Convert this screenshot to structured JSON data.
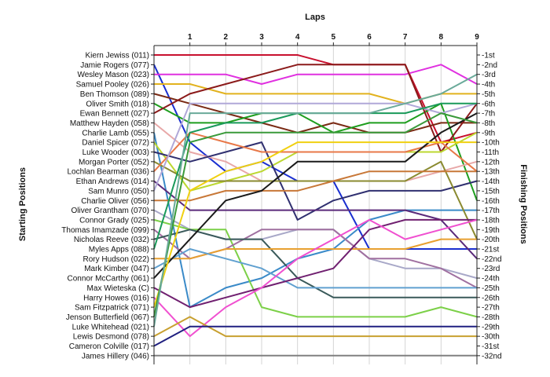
{
  "chart_data": {
    "type": "line",
    "title": "",
    "xlabel": "Laps",
    "ylabel_left": "Starting Positions",
    "ylabel_right": "Finishing Positions",
    "x": [
      0,
      1,
      2,
      3,
      4,
      5,
      6,
      7,
      8,
      9
    ],
    "x_tick_labels": [
      "1",
      "2",
      "3",
      "4",
      "5",
      "6",
      "7",
      "8",
      "9"
    ],
    "ylim": [
      1,
      32
    ],
    "grid": "vertical",
    "legend": "none",
    "drivers": [
      {
        "name": "Kiern Jewiss (011)",
        "color": "#c8102e",
        "positions": [
          1,
          1,
          1,
          1,
          1,
          2,
          2,
          2,
          10,
          9
        ]
      },
      {
        "name": "Jamie Rogers (077)",
        "color": "#1a2fd0",
        "positions": [
          2,
          10,
          13,
          12,
          14,
          14,
          21,
          21,
          21,
          21
        ]
      },
      {
        "name": "Wesley Mason (023)",
        "color": "#e030e0",
        "positions": [
          3,
          3,
          3,
          4,
          3,
          3,
          3,
          3,
          2,
          4
        ]
      },
      {
        "name": "Samuel Pooley (026)",
        "color": "#e2b21e",
        "positions": [
          4,
          4,
          5,
          5,
          5,
          5,
          5,
          6,
          5,
          5
        ]
      },
      {
        "name": "Ben Thomson (089)",
        "color": "#7a2a14",
        "positions": [
          5,
          6,
          7,
          8,
          9,
          8,
          9,
          9,
          8,
          8
        ]
      },
      {
        "name": "Oliver Smith (018)",
        "color": "#1e9e1e",
        "positions": [
          6,
          8,
          8,
          7,
          7,
          9,
          8,
          8,
          6,
          16
        ]
      },
      {
        "name": "Ewan Bennett (027)",
        "color": "#8b1a1a",
        "positions": [
          7,
          5,
          4,
          3,
          2,
          2,
          2,
          2,
          11,
          6
        ]
      },
      {
        "name": "Matthew Hayden (058)",
        "color": "#e8a8a8",
        "positions": [
          8,
          11,
          12,
          14,
          14,
          14,
          14,
          14,
          13,
          12
        ]
      },
      {
        "name": "Charlie Lamb (055)",
        "color": "#3a8ac8",
        "positions": [
          9,
          27,
          25,
          24,
          22,
          21,
          18,
          17,
          17,
          17
        ]
      },
      {
        "name": "Daniel Spicer (072)",
        "color": "#bcd830",
        "positions": [
          10,
          15,
          14,
          13,
          11,
          11,
          11,
          11,
          11,
          9
        ]
      },
      {
        "name": "Luke Wooder (003)",
        "color": "#303070",
        "positions": [
          11,
          12,
          11,
          10,
          18,
          16,
          15,
          15,
          15,
          14
        ]
      },
      {
        "name": "Morgan Porter (052)",
        "color": "#8a8a30",
        "positions": [
          12,
          14,
          14,
          14,
          14,
          14,
          14,
          14,
          12,
          20
        ]
      },
      {
        "name": "Lochlan Bearman (036)",
        "color": "#e87848",
        "positions": [
          13,
          9,
          10,
          11,
          11,
          11,
          11,
          11,
          10,
          13
        ]
      },
      {
        "name": "Ethan Andrews (014)",
        "color": "#5a2a7a",
        "positions": [
          14,
          17,
          17,
          17,
          17,
          17,
          17,
          17,
          18,
          22
        ]
      },
      {
        "name": "Sam Munro (050)",
        "color": "#b0a8d8",
        "positions": [
          15,
          6,
          6,
          6,
          6,
          6,
          6,
          6,
          7,
          6
        ]
      },
      {
        "name": "Charlie Oliver (056)",
        "color": "#c87838",
        "positions": [
          16,
          16,
          15,
          15,
          15,
          14,
          13,
          13,
          13,
          13
        ]
      },
      {
        "name": "Oliver Grantham (070)",
        "color": "#a8a8c8",
        "positions": [
          17,
          19,
          20,
          20,
          19,
          19,
          22,
          23,
          23,
          24
        ]
      },
      {
        "name": "Connor Grady (025)",
        "color": "#7cd048",
        "positions": [
          18,
          19,
          19,
          27,
          28,
          28,
          28,
          28,
          27,
          28
        ]
      },
      {
        "name": "Thomas Imamzade (099)",
        "color": "#a070a0",
        "positions": [
          19,
          22,
          21,
          19,
          19,
          19,
          22,
          22,
          23,
          25
        ]
      },
      {
        "name": "Nicholas Reeve (032)",
        "color": "#3a5a5a",
        "positions": [
          20,
          19,
          20,
          20,
          24,
          26,
          26,
          26,
          26,
          26
        ]
      },
      {
        "name": "Myles Apps (088)",
        "color": "#1a9a5a",
        "positions": [
          21,
          9,
          8,
          8,
          7,
          7,
          7,
          7,
          6,
          6
        ]
      },
      {
        "name": "Rory Hudson (022)",
        "color": "#e8a030",
        "positions": [
          22,
          22,
          21,
          21,
          21,
          21,
          21,
          21,
          20,
          20
        ]
      },
      {
        "name": "Mark Kimber (047)",
        "color": "#60a0d0",
        "positions": [
          23,
          21,
          22,
          23,
          25,
          25,
          25,
          25,
          25,
          25
        ]
      },
      {
        "name": "Connor McCarthy (061)",
        "color": "#1a1a1a",
        "positions": [
          24,
          20,
          16,
          15,
          12,
          12,
          12,
          12,
          9,
          7
        ]
      },
      {
        "name": "Max Wieteska (C)",
        "color": "#702070",
        "positions": [
          25,
          27,
          26,
          25,
          24,
          23,
          19,
          18,
          18,
          18
        ]
      },
      {
        "name": "Harry Howes (016)",
        "color": "#f050d0",
        "positions": [
          26,
          30,
          27,
          25,
          22,
          20,
          18,
          20,
          19,
          18
        ]
      },
      {
        "name": "Sam Fitzpatrick (071)",
        "color": "#f0d010",
        "positions": [
          27,
          15,
          13,
          12,
          10,
          10,
          10,
          10,
          10,
          10
        ]
      },
      {
        "name": "Jenson Butterfield (067)",
        "color": "#3a9a3a",
        "positions": [
          28,
          10,
          9,
          9,
          9,
          9,
          9,
          9,
          7,
          8
        ]
      },
      {
        "name": "Luke Whitehead (021)",
        "color": "#6aaa9a",
        "positions": [
          29,
          7,
          7,
          7,
          7,
          7,
          7,
          6,
          5,
          3
        ]
      },
      {
        "name": "Lewis Desmond (078)",
        "color": "#c8a030",
        "positions": [
          30,
          28,
          30,
          30,
          30,
          30,
          30,
          30,
          30,
          30
        ]
      },
      {
        "name": "Cameron Colville (017)",
        "color": "#202080",
        "positions": [
          31,
          29,
          29,
          29,
          29,
          29,
          29,
          29,
          29,
          29
        ]
      },
      {
        "name": "James Hillery (046)",
        "color": "#808080",
        "positions": [
          32,
          32,
          32,
          32,
          32,
          32,
          32,
          32,
          32,
          32
        ]
      }
    ],
    "finishing_labels": [
      "1st",
      "2nd",
      "3rd",
      "4th",
      "5th",
      "6th",
      "7th",
      "8th",
      "9th",
      "10th",
      "11th",
      "12th",
      "13th",
      "14th",
      "15th",
      "16th",
      "17th",
      "18th",
      "19th",
      "20th",
      "21st",
      "22nd",
      "23rd",
      "24th",
      "25th",
      "26th",
      "27th",
      "28th",
      "29th",
      "30th",
      "31st",
      "32nd"
    ]
  }
}
